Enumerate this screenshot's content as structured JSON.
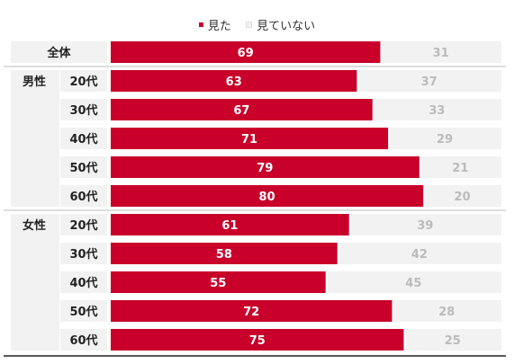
{
  "chart_data": {
    "type": "bar",
    "orientation": "horizontal",
    "stacked": true,
    "xlim": [
      0,
      100
    ],
    "legend_position": "top-center",
    "series": [
      {
        "name": "見た",
        "color": "#c8002a",
        "values": [
          69,
          63,
          67,
          71,
          79,
          80,
          61,
          58,
          55,
          72,
          75
        ]
      },
      {
        "name": "見ていない",
        "color": "#f2f2f2",
        "values": [
          31,
          37,
          33,
          29,
          21,
          20,
          39,
          42,
          45,
          28,
          25
        ]
      }
    ],
    "groups": [
      {
        "label": "",
        "categories": [
          "全体"
        ]
      },
      {
        "label": "男性",
        "categories": [
          "20代",
          "30代",
          "40代",
          "50代",
          "60代"
        ]
      },
      {
        "label": "女性",
        "categories": [
          "20代",
          "30代",
          "40代",
          "50代",
          "60代"
        ]
      }
    ],
    "colors": {
      "label_bg": "#f2f2f2",
      "value_text_light": "#ffffff",
      "value_text_dark": "#bbbbbb",
      "line": "#222222"
    }
  }
}
